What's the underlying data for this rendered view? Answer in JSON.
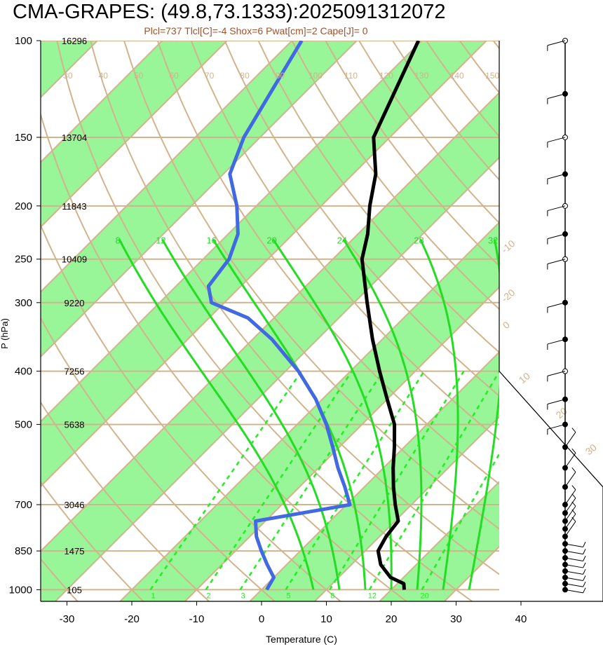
{
  "title": "CMA-GRAPES: (49.8,73.1333):2025091312072",
  "subtitle": "Plcl=737 Tlcl[C]=-4 Shox=6 Pwat[cm]=2 Cape[J]= 0",
  "chart_data": {
    "type": "line",
    "xlabel": "Temperature (C)",
    "ylabel": "P (hPa)",
    "x_ticks": [
      "-30",
      "-20",
      "-10",
      "0",
      "10",
      "20",
      "30",
      "40"
    ],
    "pressure_levels": [
      {
        "p": "100",
        "height": "16296"
      },
      {
        "p": "150",
        "height": "13704"
      },
      {
        "p": "200",
        "height": "11843"
      },
      {
        "p": "250",
        "height": "10409"
      },
      {
        "p": "300",
        "height": "9220"
      },
      {
        "p": "400",
        "height": "7256"
      },
      {
        "p": "500",
        "height": "5638"
      },
      {
        "p": "700",
        "height": "3046"
      },
      {
        "p": "850",
        "height": "1475"
      },
      {
        "p": "1000",
        "height": "105"
      }
    ],
    "xlim": [
      -35,
      52
    ],
    "ylim": [
      1050,
      100
    ],
    "y_scale": "log",
    "temperature": [
      {
        "p": 1000,
        "t": 22.0
      },
      {
        "p": 975,
        "t": 21.0
      },
      {
        "p": 950,
        "t": 18.0
      },
      {
        "p": 900,
        "t": 14.5
      },
      {
        "p": 850,
        "t": 12.0
      },
      {
        "p": 800,
        "t": 11.0
      },
      {
        "p": 750,
        "t": 10.5
      },
      {
        "p": 700,
        "t": 7.5
      },
      {
        "p": 650,
        "t": 4.5
      },
      {
        "p": 600,
        "t": 1.5
      },
      {
        "p": 550,
        "t": -1.5
      },
      {
        "p": 500,
        "t": -5.0
      },
      {
        "p": 450,
        "t": -10.0
      },
      {
        "p": 400,
        "t": -15.5
      },
      {
        "p": 350,
        "t": -21.5
      },
      {
        "p": 300,
        "t": -28.0
      },
      {
        "p": 250,
        "t": -35.5
      },
      {
        "p": 225,
        "t": -38.5
      },
      {
        "p": 200,
        "t": -42.5
      },
      {
        "p": 175,
        "t": -46.5
      },
      {
        "p": 150,
        "t": -52.5
      },
      {
        "p": 100,
        "t": -60.5
      }
    ],
    "dewpoint": [
      {
        "p": 1000,
        "t": 0.8
      },
      {
        "p": 950,
        "t": 0.0
      },
      {
        "p": 900,
        "t": -3.0
      },
      {
        "p": 850,
        "t": -6.0
      },
      {
        "p": 800,
        "t": -9.0
      },
      {
        "p": 750,
        "t": -11.5
      },
      {
        "p": 700,
        "t": 0.5
      },
      {
        "p": 650,
        "t": -3.0
      },
      {
        "p": 600,
        "t": -7.0
      },
      {
        "p": 550,
        "t": -11.0
      },
      {
        "p": 500,
        "t": -15.5
      },
      {
        "p": 450,
        "t": -21.0
      },
      {
        "p": 400,
        "t": -28.0
      },
      {
        "p": 350,
        "t": -37.0
      },
      {
        "p": 320,
        "t": -44.0
      },
      {
        "p": 300,
        "t": -52.0
      },
      {
        "p": 280,
        "t": -55.0
      },
      {
        "p": 250,
        "t": -56.0
      },
      {
        "p": 225,
        "t": -58.5
      },
      {
        "p": 200,
        "t": -63.0
      },
      {
        "p": 175,
        "t": -69.0
      },
      {
        "p": 150,
        "t": -72.5
      },
      {
        "p": 100,
        "t": -78.5
      }
    ],
    "dry_adiabats_C": [
      "-30",
      "-20",
      "-10",
      "0",
      "10",
      "20",
      "30",
      "40",
      "50",
      "60",
      "70",
      "80",
      "90",
      "100",
      "110",
      "120",
      "130",
      "140",
      "150",
      "160"
    ],
    "moist_adiabats_C": [
      "8",
      "12",
      "16",
      "20",
      "24",
      "28",
      "32"
    ],
    "mixing_ratio_labels": [
      "1",
      "2",
      "3",
      "5",
      "8",
      "12",
      "20"
    ],
    "isotherm_labels": [
      "-20",
      "-10",
      "0",
      "10",
      "20",
      "30"
    ],
    "colors": {
      "temperature": "#000000",
      "dewpoint": "#4169e1",
      "band": "#98f598",
      "reference": "#d2b48c",
      "moist": "#22dd22",
      "mixing": "#22ee22",
      "subtitle": "#a0522d"
    },
    "wind_levels_hPa": [
      1000,
      975,
      950,
      925,
      900,
      875,
      850,
      825,
      800,
      775,
      750,
      725,
      700,
      650,
      600,
      550,
      500,
      450,
      400,
      350,
      300,
      250,
      225,
      200,
      175,
      150,
      125,
      100
    ],
    "wind_markers_filled": [
      true,
      true,
      true,
      true,
      true,
      true,
      true,
      true,
      true,
      true,
      true,
      true,
      true,
      true,
      true,
      true,
      true,
      true,
      false,
      true,
      true,
      false,
      true,
      false,
      true,
      false,
      true,
      false
    ]
  }
}
